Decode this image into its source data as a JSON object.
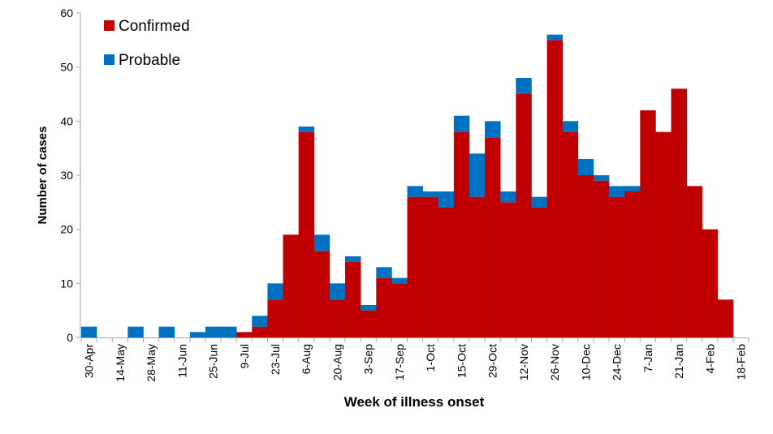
{
  "chart_data": {
    "type": "bar",
    "stacked": true,
    "xlabel": "Week of illness onset",
    "ylabel": "Number of cases",
    "ylim": [
      0,
      60
    ],
    "yticks": [
      0,
      10,
      20,
      30,
      40,
      50,
      60
    ],
    "grid": false,
    "legend_position": "top-left",
    "weeks": [
      "30-Apr",
      "7-May",
      "14-May",
      "21-May",
      "28-May",
      "4-Jun",
      "11-Jun",
      "18-Jun",
      "25-Jun",
      "2-Jul",
      "9-Jul",
      "16-Jul",
      "23-Jul",
      "30-Jul",
      "6-Aug",
      "13-Aug",
      "20-Aug",
      "27-Aug",
      "3-Sep",
      "10-Sep",
      "17-Sep",
      "24-Sep",
      "1-Oct",
      "8-Oct",
      "15-Oct",
      "22-Oct",
      "29-Oct",
      "5-Nov",
      "12-Nov",
      "19-Nov",
      "26-Nov",
      "3-Dec",
      "10-Dec",
      "17-Dec",
      "24-Dec",
      "31-Dec",
      "7-Jan",
      "14-Jan",
      "21-Jan",
      "28-Jan",
      "4-Feb",
      "11-Feb"
    ],
    "xtick_labels": [
      "30-Apr",
      "14-May",
      "28-May",
      "11-Jun",
      "25-Jun",
      "9-Jul",
      "23-Jul",
      "6-Aug",
      "20-Aug",
      "3-Sep",
      "17-Sep",
      "1-Oct",
      "15-Oct",
      "29-Oct",
      "12-Nov",
      "26-Nov",
      "10-Dec",
      "24-Dec",
      "7-Jan",
      "21-Jan",
      "4-Feb",
      "18-Feb"
    ],
    "series": [
      {
        "name": "Confirmed",
        "color": "#C00000",
        "values": [
          0,
          0,
          0,
          0,
          0,
          0,
          0,
          0,
          0,
          0,
          1,
          2,
          7,
          19,
          38,
          16,
          7,
          14,
          5,
          11,
          10,
          26,
          26,
          24,
          38,
          26,
          37,
          25,
          45,
          24,
          55,
          38,
          30,
          29,
          26,
          27,
          42,
          38,
          46,
          28,
          20,
          7
        ]
      },
      {
        "name": "Probable",
        "color": "#0070C0",
        "values": [
          2,
          0,
          0,
          2,
          0,
          2,
          0,
          1,
          2,
          2,
          0,
          2,
          3,
          0,
          1,
          3,
          3,
          1,
          1,
          2,
          1,
          2,
          1,
          3,
          3,
          8,
          3,
          2,
          3,
          2,
          1,
          2,
          3,
          1,
          2,
          1,
          0,
          0,
          0,
          0,
          0,
          0
        ]
      }
    ]
  }
}
